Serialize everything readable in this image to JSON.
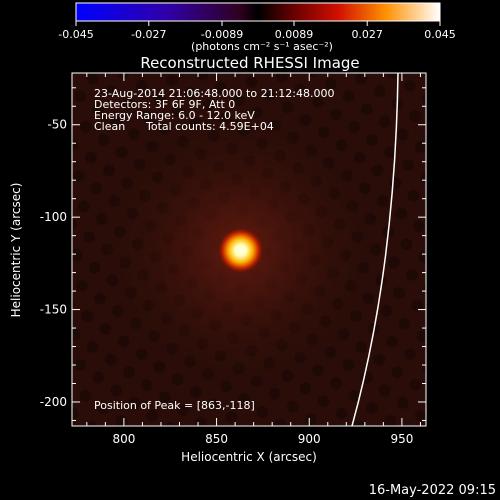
{
  "chart_data": {
    "type": "heatmap",
    "title": "Reconstructed RHESSI Image",
    "xlabel": "Heliocentric X (arcsec)",
    "ylabel": "Heliocentric Y (arcsec)",
    "xlim": [
      772,
      963
    ],
    "ylim": [
      -213,
      -22
    ],
    "x_ticks": [
      800,
      850,
      900,
      950
    ],
    "y_ticks": [
      -50,
      -100,
      -150,
      -200
    ],
    "colorbar": {
      "min": -0.045,
      "max": 0.045,
      "ticks": [
        "-0.045",
        "-0.027",
        "-0.0089",
        "0.0089",
        "0.027",
        "0.045"
      ],
      "units": "(photons cm⁻² s⁻¹ asec⁻²)"
    },
    "annotations": {
      "time": "23-Aug-2014 21:06:48.000 to 21:12:48.000",
      "detectors": "Detectors: 3F 6F 9F, Att 0",
      "energy": "Energy Range: 6.0 - 12.0 keV",
      "clean": "Clean",
      "counts": "Total counts: 4.59E+04",
      "peak": "Position of Peak = [863,-118]"
    },
    "peak": {
      "x": 863,
      "y": -118
    },
    "colors": {
      "limb": "#ffffff",
      "peak_core": "#ffffe0",
      "background": "#2a0d08"
    }
  },
  "footer": {
    "date": "16-May-2022 09:15"
  }
}
